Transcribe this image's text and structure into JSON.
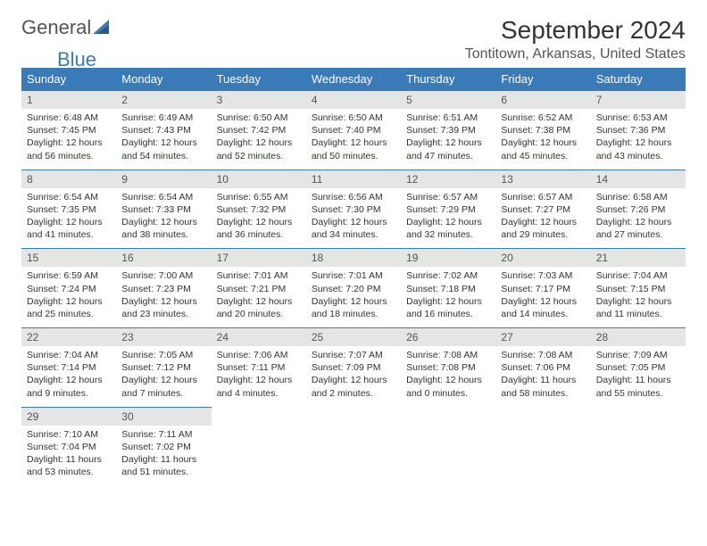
{
  "brand": {
    "part1": "General",
    "part2": "Blue"
  },
  "title": "September 2024",
  "location": "Tontitown, Arkansas, United States",
  "colors": {
    "header_bg": "#3a7ab8",
    "header_fg": "#ffffff",
    "daynum_bg": "#e5e5e5",
    "rule": "#3a7ab8"
  },
  "weekdays": [
    "Sunday",
    "Monday",
    "Tuesday",
    "Wednesday",
    "Thursday",
    "Friday",
    "Saturday"
  ],
  "days": [
    {
      "n": "1",
      "sr": "6:48 AM",
      "ss": "7:45 PM",
      "dl": "12 hours and 56 minutes."
    },
    {
      "n": "2",
      "sr": "6:49 AM",
      "ss": "7:43 PM",
      "dl": "12 hours and 54 minutes."
    },
    {
      "n": "3",
      "sr": "6:50 AM",
      "ss": "7:42 PM",
      "dl": "12 hours and 52 minutes."
    },
    {
      "n": "4",
      "sr": "6:50 AM",
      "ss": "7:40 PM",
      "dl": "12 hours and 50 minutes."
    },
    {
      "n": "5",
      "sr": "6:51 AM",
      "ss": "7:39 PM",
      "dl": "12 hours and 47 minutes."
    },
    {
      "n": "6",
      "sr": "6:52 AM",
      "ss": "7:38 PM",
      "dl": "12 hours and 45 minutes."
    },
    {
      "n": "7",
      "sr": "6:53 AM",
      "ss": "7:36 PM",
      "dl": "12 hours and 43 minutes."
    },
    {
      "n": "8",
      "sr": "6:54 AM",
      "ss": "7:35 PM",
      "dl": "12 hours and 41 minutes."
    },
    {
      "n": "9",
      "sr": "6:54 AM",
      "ss": "7:33 PM",
      "dl": "12 hours and 38 minutes."
    },
    {
      "n": "10",
      "sr": "6:55 AM",
      "ss": "7:32 PM",
      "dl": "12 hours and 36 minutes."
    },
    {
      "n": "11",
      "sr": "6:56 AM",
      "ss": "7:30 PM",
      "dl": "12 hours and 34 minutes."
    },
    {
      "n": "12",
      "sr": "6:57 AM",
      "ss": "7:29 PM",
      "dl": "12 hours and 32 minutes."
    },
    {
      "n": "13",
      "sr": "6:57 AM",
      "ss": "7:27 PM",
      "dl": "12 hours and 29 minutes."
    },
    {
      "n": "14",
      "sr": "6:58 AM",
      "ss": "7:26 PM",
      "dl": "12 hours and 27 minutes."
    },
    {
      "n": "15",
      "sr": "6:59 AM",
      "ss": "7:24 PM",
      "dl": "12 hours and 25 minutes."
    },
    {
      "n": "16",
      "sr": "7:00 AM",
      "ss": "7:23 PM",
      "dl": "12 hours and 23 minutes."
    },
    {
      "n": "17",
      "sr": "7:01 AM",
      "ss": "7:21 PM",
      "dl": "12 hours and 20 minutes."
    },
    {
      "n": "18",
      "sr": "7:01 AM",
      "ss": "7:20 PM",
      "dl": "12 hours and 18 minutes."
    },
    {
      "n": "19",
      "sr": "7:02 AM",
      "ss": "7:18 PM",
      "dl": "12 hours and 16 minutes."
    },
    {
      "n": "20",
      "sr": "7:03 AM",
      "ss": "7:17 PM",
      "dl": "12 hours and 14 minutes."
    },
    {
      "n": "21",
      "sr": "7:04 AM",
      "ss": "7:15 PM",
      "dl": "12 hours and 11 minutes."
    },
    {
      "n": "22",
      "sr": "7:04 AM",
      "ss": "7:14 PM",
      "dl": "12 hours and 9 minutes."
    },
    {
      "n": "23",
      "sr": "7:05 AM",
      "ss": "7:12 PM",
      "dl": "12 hours and 7 minutes."
    },
    {
      "n": "24",
      "sr": "7:06 AM",
      "ss": "7:11 PM",
      "dl": "12 hours and 4 minutes."
    },
    {
      "n": "25",
      "sr": "7:07 AM",
      "ss": "7:09 PM",
      "dl": "12 hours and 2 minutes."
    },
    {
      "n": "26",
      "sr": "7:08 AM",
      "ss": "7:08 PM",
      "dl": "12 hours and 0 minutes."
    },
    {
      "n": "27",
      "sr": "7:08 AM",
      "ss": "7:06 PM",
      "dl": "11 hours and 58 minutes."
    },
    {
      "n": "28",
      "sr": "7:09 AM",
      "ss": "7:05 PM",
      "dl": "11 hours and 55 minutes."
    },
    {
      "n": "29",
      "sr": "7:10 AM",
      "ss": "7:04 PM",
      "dl": "11 hours and 53 minutes."
    },
    {
      "n": "30",
      "sr": "7:11 AM",
      "ss": "7:02 PM",
      "dl": "11 hours and 51 minutes."
    }
  ],
  "labels": {
    "sunrise": "Sunrise:",
    "sunset": "Sunset:",
    "daylight": "Daylight:"
  }
}
